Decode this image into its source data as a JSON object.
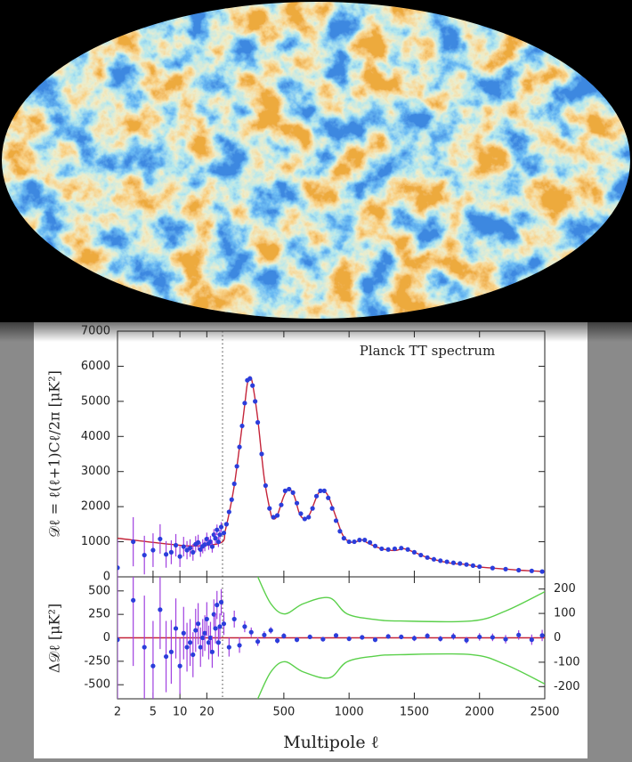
{
  "chart_data": [
    {
      "type": "combo",
      "annotation": "Planck TT spectrum",
      "ylabel": "𝒟ℓ = ℓ(ℓ+1)Cℓ/2π [μK²]",
      "ylim": [
        0,
        7000
      ],
      "yticks": [
        0,
        1000,
        2000,
        3000,
        4000,
        5000,
        6000,
        7000
      ],
      "series": [
        {
          "type": "line",
          "color": "#c4243a",
          "x": [
            2,
            10,
            20,
            30,
            50,
            80,
            120,
            160,
            200,
            220,
            240,
            260,
            300,
            350,
            400,
            420,
            450,
            500,
            540,
            580,
            620,
            660,
            700,
            760,
            800,
            840,
            900,
            950,
            1000,
            1050,
            1100,
            1150,
            1250,
            1350,
            1420,
            1500,
            1600,
            1700,
            1800,
            1900,
            2000,
            2100,
            2200,
            2300,
            2400,
            2500
          ],
          "values": [
            1100,
            900,
            900,
            1000,
            1300,
            1800,
            2600,
            3700,
            4900,
            5500,
            5700,
            5500,
            4500,
            2800,
            1800,
            1650,
            1750,
            2300,
            2500,
            2300,
            1800,
            1650,
            1800,
            2350,
            2450,
            2300,
            1700,
            1200,
            1000,
            1000,
            1050,
            950,
            800,
            750,
            800,
            700,
            550,
            450,
            380,
            350,
            280,
            250,
            220,
            190,
            170,
            150
          ]
        },
        {
          "type": "errorbar",
          "color": "#2b3ddb",
          "error_color": "#a040e0",
          "x": [
            2,
            3,
            4,
            5,
            6,
            7,
            8,
            9,
            10,
            11,
            12,
            13,
            14,
            15,
            16,
            17,
            18,
            19,
            20,
            21,
            22,
            23,
            24,
            25,
            26,
            27,
            28,
            29
          ],
          "values": [
            260,
            1000,
            620,
            760,
            1080,
            640,
            700,
            900,
            580,
            860,
            760,
            820,
            700,
            930,
            980,
            780,
            870,
            920,
            1080,
            950,
            1000,
            860,
            1200,
            1100,
            1340,
            1000,
            1200,
            1420
          ],
          "errors": [
            800,
            700,
            550,
            480,
            420,
            380,
            340,
            320,
            300,
            280,
            260,
            250,
            240,
            230,
            220,
            210,
            200,
            190,
            180,
            180,
            170,
            170,
            160,
            160,
            150,
            150,
            140,
            140
          ]
        },
        {
          "type": "scatter",
          "color": "#2b3ddb",
          "x": [
            40,
            60,
            80,
            100,
            120,
            140,
            160,
            180,
            200,
            220,
            240,
            260,
            280,
            300,
            330,
            360,
            390,
            420,
            450,
            480,
            510,
            540,
            570,
            600,
            630,
            660,
            690,
            720,
            750,
            780,
            810,
            840,
            870,
            900,
            930,
            960,
            1000,
            1040,
            1080,
            1120,
            1160,
            1200,
            1250,
            1300,
            1350,
            1400,
            1450,
            1500,
            1550,
            1600,
            1650,
            1700,
            1750,
            1800,
            1850,
            1900,
            1950,
            2000,
            2100,
            2200,
            2300,
            2400,
            2480
          ],
          "values": [
            1250,
            1500,
            1850,
            2200,
            2650,
            3150,
            3700,
            4300,
            4950,
            5600,
            5650,
            5450,
            5000,
            4400,
            3500,
            2600,
            1950,
            1700,
            1750,
            2050,
            2450,
            2500,
            2400,
            2100,
            1800,
            1650,
            1700,
            1950,
            2300,
            2450,
            2450,
            2250,
            1950,
            1600,
            1300,
            1100,
            1000,
            1000,
            1050,
            1050,
            980,
            880,
            800,
            780,
            800,
            820,
            780,
            700,
            620,
            550,
            500,
            460,
            430,
            400,
            380,
            350,
            320,
            290,
            250,
            220,
            190,
            170,
            150
          ]
        }
      ]
    },
    {
      "type": "combo",
      "xlabel": "Multipole ℓ",
      "ylabel": "Δ𝒟ℓ [μK²]",
      "xscale": "log-linear",
      "xbreak": 30,
      "xlim": [
        2,
        2500
      ],
      "xticks": [
        2,
        5,
        10,
        20,
        500,
        1000,
        1500,
        2000,
        2500
      ],
      "ylim": [
        -650,
        650
      ],
      "yticks": [
        -500,
        -250,
        0,
        250,
        500
      ],
      "y2lim": [
        -250,
        250
      ],
      "y2ticks": [
        -200,
        -100,
        0,
        100,
        200
      ],
      "series": [
        {
          "type": "line",
          "color": "#c4243a",
          "x": [
            2,
            2500
          ],
          "values": [
            0,
            0
          ]
        },
        {
          "type": "errorbar",
          "color": "#2b3ddb",
          "error_color": "#a040e0",
          "x": [
            2,
            3,
            4,
            5,
            6,
            7,
            8,
            9,
            10,
            11,
            12,
            13,
            14,
            15,
            16,
            17,
            18,
            19,
            20,
            21,
            22,
            23,
            24,
            25,
            26,
            27,
            28,
            29
          ],
          "values": [
            -20,
            400,
            -100,
            -300,
            300,
            -200,
            -150,
            100,
            -300,
            50,
            -100,
            -50,
            -180,
            80,
            150,
            -100,
            0,
            50,
            200,
            -50,
            0,
            -150,
            250,
            100,
            350,
            -50,
            120,
            380
          ],
          "errors": [
            800,
            700,
            550,
            480,
            420,
            380,
            340,
            320,
            300,
            280,
            260,
            250,
            240,
            230,
            220,
            210,
            200,
            190,
            180,
            180,
            170,
            170,
            160,
            160,
            150,
            150,
            140,
            140
          ]
        },
        {
          "type": "errorbar",
          "color": "#2b3ddb",
          "error_color": "#a040e0",
          "x": [
            40,
            80,
            120,
            160,
            200,
            250,
            300,
            350,
            400,
            450,
            500,
            600,
            700,
            800,
            900,
            1000,
            1100,
            1200,
            1300,
            1400,
            1500,
            1600,
            1700,
            1800,
            1900,
            2000,
            2100,
            2200,
            2300,
            2400,
            2480
          ],
          "values": [
            150,
            -100,
            200,
            -80,
            120,
            60,
            -40,
            30,
            80,
            -30,
            20,
            -20,
            10,
            -15,
            25,
            -10,
            5,
            -20,
            15,
            10,
            -5,
            20,
            -10,
            15,
            -25,
            10,
            5,
            -15,
            30,
            -20,
            25
          ],
          "errors": [
            120,
            100,
            90,
            80,
            60,
            50,
            45,
            40,
            35,
            30,
            30,
            25,
            25,
            25,
            25,
            25,
            25,
            25,
            25,
            25,
            30,
            30,
            30,
            35,
            35,
            40,
            40,
            45,
            50,
            55,
            60
          ]
        },
        {
          "type": "line",
          "axis": "y2",
          "color": "#5ad04a",
          "x": [
            300,
            400,
            507,
            650,
            849,
            985,
            1200,
            1394,
            1940,
            2200,
            2500
          ],
          "values": [
            250,
            140,
            98,
            140,
            164,
            98,
            75,
            69,
            69,
            110,
            189
          ]
        },
        {
          "type": "line",
          "axis": "y2",
          "color": "#5ad04a",
          "x": [
            300,
            400,
            507,
            650,
            849,
            985,
            1200,
            1394,
            1940,
            2200,
            2500
          ],
          "values": [
            -250,
            -140,
            -98,
            -140,
            -164,
            -98,
            -75,
            -69,
            -69,
            -110,
            -189
          ]
        }
      ]
    }
  ]
}
